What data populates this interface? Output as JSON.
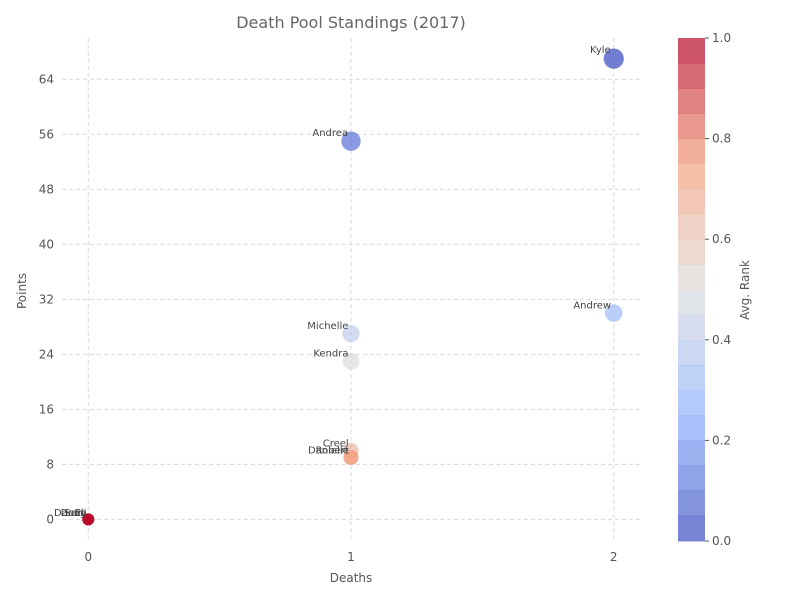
{
  "chart_data": {
    "type": "scatter",
    "title": "Death Pool Standings (2017)",
    "xlabel": "Deaths",
    "ylabel": "Points",
    "xlim": [
      -0.1,
      2.1
    ],
    "ylim": [
      -3,
      70
    ],
    "xticks": [
      0,
      1,
      2
    ],
    "yticks": [
      0,
      8,
      16,
      24,
      32,
      40,
      48,
      56,
      64
    ],
    "grid": true,
    "colorbar": {
      "label": "Avg. Rank",
      "colormap": "coolwarm",
      "range": [
        0,
        1
      ],
      "ticks": [
        "0.0",
        "0.2",
        "0.4",
        "0.6",
        "0.8",
        "1.0"
      ]
    },
    "points": [
      {
        "label": "Kyle",
        "x": 2,
        "y": 67,
        "rank": 0.0
      },
      {
        "label": "Andrea",
        "x": 1,
        "y": 55,
        "rank": 0.1
      },
      {
        "label": "Andrew",
        "x": 2,
        "y": 30,
        "rank": 0.3
      },
      {
        "label": "Michelle",
        "x": 1,
        "y": 27,
        "rank": 0.4
      },
      {
        "label": "Kendra",
        "x": 1,
        "y": 23,
        "rank": 0.5
      },
      {
        "label": "Creel",
        "x": 1,
        "y": 10,
        "rank": 0.65
      },
      {
        "label": "Robert",
        "x": 1,
        "y": 9,
        "rank": 0.7
      },
      {
        "label": "Danielle",
        "x": 1,
        "y": 9,
        "rank": 0.75
      },
      {
        "label": "Eli",
        "x": 0,
        "y": 0,
        "rank": 0.9
      },
      {
        "label": "Sam",
        "x": 0,
        "y": 0,
        "rank": 0.93
      },
      {
        "label": "Dave",
        "x": 0,
        "y": 0,
        "rank": 0.97
      },
      {
        "label": "Danny",
        "x": 0,
        "y": 0,
        "rank": 1.0
      }
    ]
  }
}
